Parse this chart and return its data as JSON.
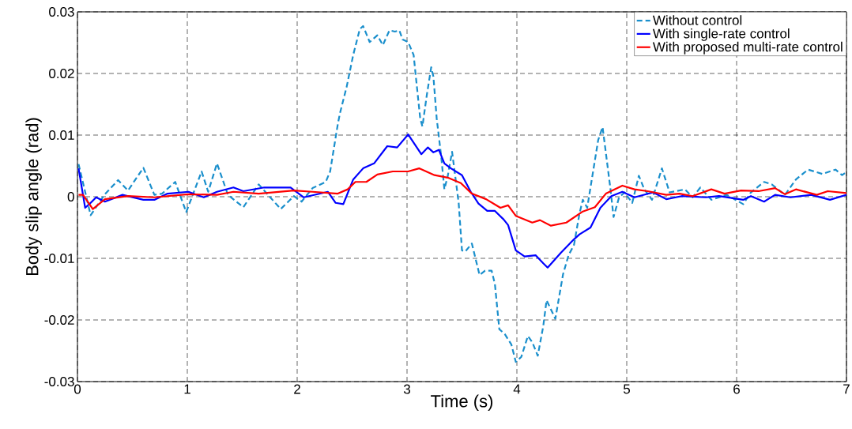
{
  "chart_data": {
    "type": "line",
    "xlabel": "Time (s)",
    "ylabel": "Body slip angle (rad)",
    "xlim": [
      0,
      7
    ],
    "ylim": [
      -0.03,
      0.03
    ],
    "xticks": [
      0,
      1,
      2,
      3,
      4,
      5,
      6,
      7
    ],
    "yticks": [
      -0.03,
      -0.02,
      -0.01,
      0,
      0.01,
      0.02,
      0.03
    ],
    "grid": true,
    "legend": "top right",
    "marker": "none",
    "series": [
      {
        "name": "Without control",
        "color": "#1a8fcc",
        "line_style": "dashed",
        "x": [
          0.01,
          0.12,
          0.245,
          0.37,
          0.46,
          0.6,
          0.7,
          0.77,
          0.89,
          0.99,
          1.13,
          1.19,
          1.27,
          1.37,
          1.51,
          1.65,
          1.85,
          1.97,
          2.04,
          2.14,
          2.26,
          2.3,
          2.37,
          2.39,
          2.45,
          2.51,
          2.57,
          2.6,
          2.66,
          2.73,
          2.78,
          2.84,
          2.89,
          2.93,
          2.96,
          3.01,
          3.06,
          3.09,
          3.12,
          3.14,
          3.18,
          3.22,
          3.24,
          3.27,
          3.31,
          3.34,
          3.37,
          3.41,
          3.47,
          3.5,
          3.53,
          3.59,
          3.66,
          3.71,
          3.77,
          3.8,
          3.84,
          3.89,
          3.95,
          3.99,
          4.04,
          4.1,
          4.14,
          4.19,
          4.24,
          4.27,
          4.35,
          4.42,
          4.47,
          4.52,
          4.57,
          4.6,
          4.64,
          4.69,
          4.74,
          4.78,
          4.85,
          4.88,
          4.93,
          4.98,
          5.05,
          5.11,
          5.16,
          5.23,
          5.32,
          5.39,
          5.53,
          5.6,
          5.67,
          5.77,
          5.91,
          6.06,
          6.13,
          6.25,
          6.32,
          6.44,
          6.54,
          6.65,
          6.78,
          6.9,
          6.96,
          7.0
        ],
        "values": [
          0.0053,
          -0.003,
          0.0003,
          0.0027,
          0.001,
          0.0047,
          0.0003,
          0.0005,
          0.0024,
          -0.0025,
          0.0041,
          0.0008,
          0.0054,
          0.0003,
          -0.0017,
          0.002,
          -0.002,
          0.0001,
          -0.0008,
          0.0014,
          0.0024,
          0.0041,
          0.0118,
          0.0136,
          0.0178,
          0.023,
          0.0272,
          0.0277,
          0.0251,
          0.0262,
          0.0246,
          0.027,
          0.0268,
          0.027,
          0.0255,
          0.0251,
          0.023,
          0.0178,
          0.0127,
          0.0114,
          0.0165,
          0.021,
          0.0195,
          0.0127,
          0.0067,
          0.0012,
          0.0033,
          0.0073,
          -0.001,
          -0.0087,
          -0.0089,
          -0.0076,
          -0.0127,
          -0.012,
          -0.012,
          -0.0142,
          -0.0215,
          -0.0223,
          -0.024,
          -0.0268,
          -0.026,
          -0.0226,
          -0.0236,
          -0.0258,
          -0.021,
          -0.0168,
          -0.0198,
          -0.0126,
          -0.0095,
          -0.0078,
          -0.0027,
          -0.0005,
          -0.0018,
          0.0037,
          0.0092,
          0.0113,
          0.0015,
          -0.0033,
          -0.0001,
          0.0007,
          -0.001,
          0.0034,
          0.0012,
          -0.0005,
          0.0046,
          0.0007,
          0.0012,
          -0.0001,
          0.0015,
          -0.0005,
          0.0003,
          -0.0012,
          0.0007,
          0.0024,
          0.002,
          0.0003,
          0.0028,
          0.0044,
          0.0037,
          0.0044,
          0.0035,
          0.004
        ]
      },
      {
        "name": "With single-rate control",
        "color": "#0000ff",
        "line_style": "solid",
        "x": [
          0.01,
          0.07,
          0.12,
          0.17,
          0.25,
          0.41,
          0.6,
          0.7,
          0.82,
          1.01,
          1.15,
          1.27,
          1.42,
          1.51,
          1.7,
          1.94,
          2.06,
          2.28,
          2.35,
          2.42,
          2.51,
          2.6,
          2.7,
          2.82,
          2.91,
          3.01,
          3.07,
          3.13,
          3.19,
          3.24,
          3.29,
          3.34,
          3.4,
          3.5,
          3.58,
          3.65,
          3.73,
          3.8,
          3.88,
          3.92,
          3.99,
          4.07,
          4.17,
          4.24,
          4.28,
          4.4,
          4.52,
          4.57,
          4.67,
          4.76,
          4.86,
          4.96,
          5.07,
          5.24,
          5.36,
          5.5,
          5.72,
          5.84,
          6.06,
          6.13,
          6.25,
          6.35,
          6.49,
          6.68,
          6.85,
          7.0
        ],
        "values": [
          0.0046,
          -0.0018,
          -0.001,
          -0.0001,
          -0.0008,
          0.0003,
          -0.0005,
          -0.0005,
          0.0005,
          0.0008,
          -0.0001,
          0.0008,
          0.0015,
          0.0009,
          0.0015,
          0.0015,
          -0.0001,
          0.0008,
          -0.001,
          -0.0012,
          0.0028,
          0.0046,
          0.0054,
          0.0082,
          0.008,
          0.0101,
          0.0085,
          0.0069,
          0.008,
          0.0072,
          0.0076,
          0.0054,
          0.0046,
          0.0035,
          0.0008,
          -0.0011,
          -0.0023,
          -0.0023,
          -0.0037,
          -0.0046,
          -0.0087,
          -0.0097,
          -0.0095,
          -0.0108,
          -0.0115,
          -0.0091,
          -0.0069,
          -0.0061,
          -0.005,
          -0.0018,
          0.0001,
          0.0008,
          -0.0001,
          0.0007,
          -0.0004,
          0.0001,
          -0.0001,
          0.0001,
          -0.0005,
          0.0001,
          -0.0008,
          0.0003,
          -0.0001,
          0.0003,
          -0.0005,
          0.0003
        ]
      },
      {
        "name": "With proposed multi-rate control",
        "color": "#ff0000",
        "line_style": "solid",
        "x": [
          0.01,
          0.05,
          0.14,
          0.25,
          0.46,
          0.7,
          1.01,
          1.27,
          1.42,
          1.65,
          1.97,
          2.14,
          2.37,
          2.46,
          2.53,
          2.63,
          2.73,
          2.87,
          3.01,
          3.11,
          3.25,
          3.37,
          3.49,
          3.59,
          3.72,
          3.85,
          3.92,
          3.99,
          4.14,
          4.21,
          4.31,
          4.45,
          4.6,
          4.71,
          4.81,
          4.96,
          5.07,
          5.19,
          5.36,
          5.48,
          5.6,
          5.77,
          5.89,
          6.04,
          6.2,
          6.35,
          6.44,
          6.54,
          6.73,
          6.83,
          7.0
        ],
        "values": [
          0.0003,
          0.0003,
          -0.002,
          -0.0004,
          0.0001,
          -0.0001,
          0.0004,
          0.0003,
          0.0008,
          0.0005,
          0.001,
          0.0008,
          0.0005,
          0.0012,
          0.0024,
          0.0024,
          0.0036,
          0.0041,
          0.0041,
          0.0046,
          0.0035,
          0.0031,
          0.0022,
          0.0005,
          -0.0004,
          -0.0018,
          -0.0014,
          -0.0031,
          -0.0042,
          -0.0038,
          -0.0047,
          -0.0042,
          -0.0024,
          -0.0017,
          0.0005,
          0.0018,
          0.0012,
          0.0009,
          0.0003,
          0.0005,
          0.0001,
          0.0012,
          0.0005,
          0.001,
          0.0009,
          0.0014,
          0.0004,
          0.0012,
          0.0003,
          0.0009,
          0.0006
        ]
      }
    ]
  }
}
